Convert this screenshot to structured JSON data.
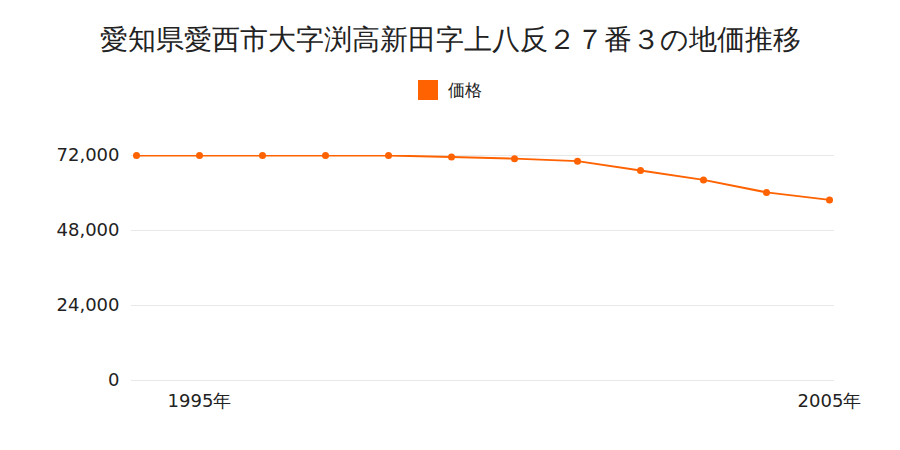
{
  "chart_data": {
    "type": "line",
    "title": "愛知県愛西市大字渕高新田字上八反２７番３の地価推移",
    "categories": [
      null,
      "1995年",
      null,
      null,
      null,
      null,
      null,
      null,
      null,
      null,
      null,
      "2005年"
    ],
    "series": [
      {
        "name": "価格",
        "color": "#ff6200",
        "marker": "circle",
        "values": [
          72000,
          72000,
          72000,
          72000,
          72000,
          71500,
          71000,
          70200,
          67200,
          64200,
          60200,
          57800
        ]
      }
    ],
    "ylim": [
      0,
      72000
    ],
    "yticks": [
      0,
      {
        "value": 24000,
        "label": "24,000"
      },
      {
        "value": 48000,
        "label": "48,000"
      },
      {
        "value": 72000,
        "label": "72,000"
      }
    ],
    "grid": true,
    "legend": "top"
  }
}
